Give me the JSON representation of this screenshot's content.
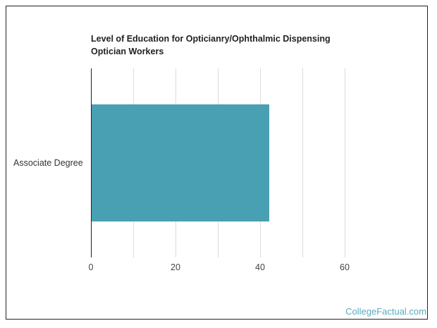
{
  "chart_data": {
    "type": "bar",
    "orientation": "horizontal",
    "title": "Level of Education for Opticianry/Ophthalmic Dispensing Optician Workers",
    "categories": [
      "Associate Degree"
    ],
    "values": [
      42.2
    ],
    "xlabel": "",
    "ylabel": "",
    "xlim": [
      0,
      60
    ],
    "x_ticks": [
      0,
      20,
      40,
      60
    ],
    "gridlines": [
      0,
      10,
      20,
      30,
      40,
      50,
      60
    ],
    "grid": true,
    "bar_color": "#4aa0b3"
  },
  "title": "Level of Education for Opticianry/Ophthalmic Dispensing Optician Workers",
  "category_label": "Associate Degree",
  "ticks": [
    "0",
    "20",
    "40",
    "60"
  ],
  "brand": "CollegeFactual.com"
}
